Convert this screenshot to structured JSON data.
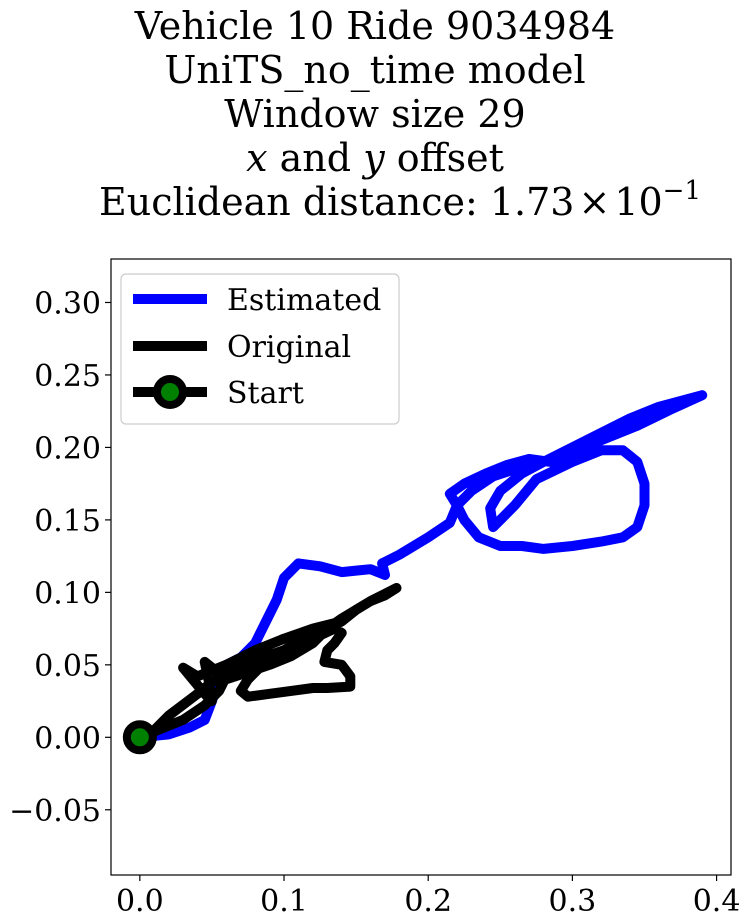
{
  "chart_data": {
    "type": "line",
    "title_lines": [
      "Vehicle 10 Ride 9034984",
      "UniTS_no_time model",
      "Window size 29"
    ],
    "title_math_line": {
      "var1": "x",
      "mid": " and ",
      "var2": "y",
      "tail": " offset"
    },
    "title_distance": {
      "prefix": "Euclidean distance: 1.73",
      "times": "×",
      "base": "10",
      "exponent": "−1"
    },
    "xlim": [
      -0.02,
      0.41
    ],
    "ylim": [
      -0.095,
      0.33
    ],
    "x_ticks": [
      0.0,
      0.1,
      0.2,
      0.3,
      0.4
    ],
    "x_tick_labels": [
      "0.0",
      "0.1",
      "0.2",
      "0.3",
      "0.4"
    ],
    "y_ticks": [
      -0.05,
      0.0,
      0.05,
      0.1,
      0.15,
      0.2,
      0.25,
      0.3
    ],
    "y_tick_labels": [
      "−0.05",
      "0.00",
      "0.05",
      "0.10",
      "0.15",
      "0.20",
      "0.25",
      "0.30"
    ],
    "legend_position": "top-left",
    "series": [
      {
        "name": "Estimated",
        "color": "#0000ff",
        "points": [
          [
            0,
            0
          ],
          [
            0.02,
            0.002
          ],
          [
            0.035,
            0.007
          ],
          [
            0.045,
            0.012
          ],
          [
            0.05,
            0.025
          ],
          [
            0.055,
            0.04
          ],
          [
            0.06,
            0.05
          ],
          [
            0.07,
            0.055
          ],
          [
            0.08,
            0.065
          ],
          [
            0.085,
            0.075
          ],
          [
            0.095,
            0.095
          ],
          [
            0.1,
            0.11
          ],
          [
            0.11,
            0.12
          ],
          [
            0.125,
            0.118
          ],
          [
            0.14,
            0.114
          ],
          [
            0.15,
            0.115
          ],
          [
            0.16,
            0.116
          ],
          [
            0.17,
            0.112
          ],
          [
            0.168,
            0.12
          ],
          [
            0.18,
            0.126
          ],
          [
            0.2,
            0.138
          ],
          [
            0.215,
            0.148
          ],
          [
            0.22,
            0.16
          ],
          [
            0.23,
            0.17
          ],
          [
            0.245,
            0.18
          ],
          [
            0.26,
            0.185
          ],
          [
            0.28,
            0.19
          ],
          [
            0.3,
            0.2
          ],
          [
            0.32,
            0.21
          ],
          [
            0.34,
            0.22
          ],
          [
            0.36,
            0.228
          ],
          [
            0.39,
            0.236
          ],
          [
            0.37,
            0.23
          ],
          [
            0.34,
            0.22
          ],
          [
            0.31,
            0.205
          ],
          [
            0.28,
            0.19
          ],
          [
            0.265,
            0.182
          ],
          [
            0.25,
            0.17
          ],
          [
            0.243,
            0.158
          ],
          [
            0.245,
            0.145
          ],
          [
            0.26,
            0.16
          ],
          [
            0.275,
            0.178
          ],
          [
            0.3,
            0.19
          ],
          [
            0.32,
            0.198
          ],
          [
            0.335,
            0.198
          ],
          [
            0.345,
            0.19
          ],
          [
            0.35,
            0.175
          ],
          [
            0.35,
            0.16
          ],
          [
            0.345,
            0.145
          ],
          [
            0.335,
            0.138
          ],
          [
            0.32,
            0.135
          ],
          [
            0.3,
            0.132
          ],
          [
            0.28,
            0.13
          ],
          [
            0.265,
            0.132
          ],
          [
            0.25,
            0.132
          ],
          [
            0.235,
            0.138
          ],
          [
            0.225,
            0.15
          ],
          [
            0.22,
            0.16
          ],
          [
            0.215,
            0.168
          ],
          [
            0.225,
            0.175
          ],
          [
            0.24,
            0.182
          ],
          [
            0.255,
            0.188
          ],
          [
            0.27,
            0.192
          ],
          [
            0.285,
            0.19
          ],
          [
            0.3,
            0.195
          ],
          [
            0.32,
            0.205
          ],
          [
            0.345,
            0.215
          ],
          [
            0.37,
            0.227
          ],
          [
            0.39,
            0.236
          ]
        ]
      },
      {
        "name": "Original",
        "color": "#000000",
        "points": [
          [
            0,
            0
          ],
          [
            0.03,
            0.012
          ],
          [
            0.045,
            0.022
          ],
          [
            0.055,
            0.032
          ],
          [
            0.06,
            0.042
          ],
          [
            0.05,
            0.048
          ],
          [
            0.045,
            0.052
          ],
          [
            0.048,
            0.038
          ],
          [
            0.05,
            0.025
          ],
          [
            0.045,
            0.03
          ],
          [
            0.035,
            0.042
          ],
          [
            0.03,
            0.048
          ],
          [
            0.04,
            0.042
          ],
          [
            0.06,
            0.05
          ],
          [
            0.08,
            0.06
          ],
          [
            0.1,
            0.068
          ],
          [
            0.12,
            0.075
          ],
          [
            0.14,
            0.08
          ],
          [
            0.15,
            0.088
          ],
          [
            0.16,
            0.094
          ],
          [
            0.17,
            0.098
          ],
          [
            0.178,
            0.103
          ],
          [
            0.16,
            0.094
          ],
          [
            0.14,
            0.082
          ],
          [
            0.13,
            0.075
          ],
          [
            0.12,
            0.065
          ],
          [
            0.105,
            0.056
          ],
          [
            0.09,
            0.05
          ],
          [
            0.075,
            0.045
          ],
          [
            0.06,
            0.04
          ],
          [
            0.055,
            0.038
          ],
          [
            0.065,
            0.045
          ],
          [
            0.08,
            0.05
          ],
          [
            0.1,
            0.058
          ],
          [
            0.12,
            0.068
          ],
          [
            0.135,
            0.075
          ],
          [
            0.14,
            0.072
          ],
          [
            0.135,
            0.065
          ],
          [
            0.13,
            0.06
          ],
          [
            0.128,
            0.052
          ],
          [
            0.14,
            0.05
          ],
          [
            0.146,
            0.042
          ],
          [
            0.146,
            0.035
          ],
          [
            0.13,
            0.034
          ],
          [
            0.12,
            0.034
          ],
          [
            0.105,
            0.032
          ],
          [
            0.09,
            0.03
          ],
          [
            0.075,
            0.028
          ],
          [
            0.07,
            0.032
          ],
          [
            0.075,
            0.04
          ],
          [
            0.085,
            0.05
          ],
          [
            0.1,
            0.06
          ],
          [
            0.12,
            0.072
          ],
          [
            0.14,
            0.08
          ],
          [
            0.1,
            0.06
          ],
          [
            0.07,
            0.05
          ],
          [
            0.05,
            0.038
          ],
          [
            0.04,
            0.03
          ],
          [
            0.02,
            0.015
          ],
          [
            0.01,
            0.005
          ],
          [
            0,
            0
          ]
        ]
      }
    ],
    "start_marker": {
      "name": "Start",
      "point": [
        0,
        0
      ],
      "edge_color": "#000000",
      "face_color": "#008000"
    }
  }
}
